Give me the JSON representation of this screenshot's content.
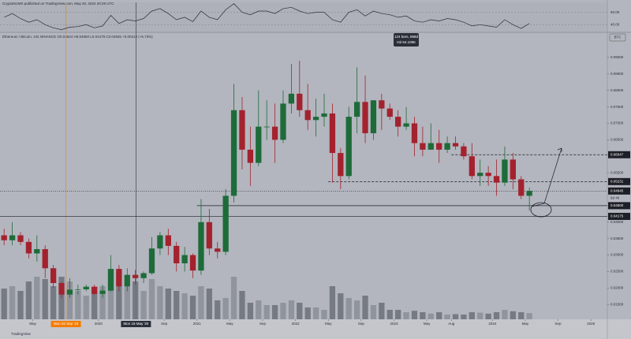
{
  "header": {
    "publisher": "CryptoNicMS published on TradingView.com, May 20, 2024 20:29 UTC",
    "legend": "Ethereum / Bitcoin, 1W, BINANCE  O0.04624 H0.04950 L0.04479 C0.04945 +0.00312 (+6.73%)",
    "measure_bars": "124 bars, 868d",
    "measure_vol": "Vol 64.109K",
    "currency": "BTC",
    "countdown": "6d 4h",
    "logo": "TradingView"
  },
  "chart_data": {
    "type": "candlestick",
    "name": "Ethereum / Bitcoin",
    "up_color": "#1e6b3a",
    "down_color": "#a3222e",
    "x": [
      "2019-01",
      "2019-02",
      "2019-03",
      "2019-04",
      "2019-05",
      "2019-06",
      "2019-07",
      "2019-08",
      "2019-09",
      "2019-10",
      "2019-11",
      "2019-12",
      "2020-01",
      "2020-02",
      "2020-03",
      "2020-04",
      "2020-05",
      "2020-06",
      "2020-07",
      "2020-08",
      "2020-09",
      "2020-10",
      "2020-11",
      "2020-12",
      "2021-01",
      "2021-02",
      "2021-03",
      "2021-04",
      "2021-05",
      "2021-06",
      "2021-07",
      "2021-08",
      "2021-09",
      "2021-10",
      "2021-11",
      "2021-12",
      "2022-01",
      "2022-02",
      "2022-03",
      "2022-04",
      "2022-05",
      "2022-06",
      "2022-07",
      "2022-08",
      "2022-09",
      "2022-10",
      "2022-11",
      "2022-12",
      "2023-01",
      "2023-02",
      "2023-03",
      "2023-04",
      "2023-05",
      "2023-06",
      "2023-07",
      "2023-08",
      "2023-09",
      "2023-10",
      "2023-11",
      "2023-12",
      "2024-01",
      "2024-02",
      "2024-03",
      "2024-04",
      "2024-05"
    ],
    "open": [
      0.036,
      0.0345,
      0.036,
      0.034,
      0.0305,
      0.0318,
      0.026,
      0.0215,
      0.018,
      0.0195,
      0.0196,
      0.0204,
      0.0182,
      0.0192,
      0.0258,
      0.0205,
      0.024,
      0.023,
      0.0245,
      0.032,
      0.036,
      0.0328,
      0.0275,
      0.03,
      0.0253,
      0.04,
      0.032,
      0.031,
      0.048,
      0.074,
      0.062,
      0.058,
      0.069,
      0.069,
      0.065,
      0.076,
      0.079,
      0.074,
      0.071,
      0.072,
      0.073,
      0.061,
      0.054,
      0.072,
      0.0765,
      0.067,
      0.077,
      0.0745,
      0.072,
      0.069,
      0.07,
      0.064,
      0.062,
      0.064,
      0.062,
      0.064,
      0.063,
      0.06,
      0.054,
      0.055,
      0.054,
      0.052,
      0.059,
      0.053,
      0.048
    ],
    "high": [
      0.038,
      0.04,
      0.037,
      0.035,
      0.036,
      0.033,
      0.027,
      0.022,
      0.023,
      0.021,
      0.021,
      0.021,
      0.021,
      0.03,
      0.027,
      0.026,
      0.0255,
      0.025,
      0.0355,
      0.037,
      0.038,
      0.034,
      0.0325,
      0.0305,
      0.047,
      0.044,
      0.034,
      0.05,
      0.082,
      0.078,
      0.069,
      0.08,
      0.077,
      0.076,
      0.08,
      0.088,
      0.089,
      0.082,
      0.0775,
      0.079,
      0.076,
      0.0625,
      0.075,
      0.087,
      0.0845,
      0.077,
      0.079,
      0.076,
      0.074,
      0.075,
      0.072,
      0.069,
      0.07,
      0.068,
      0.066,
      0.066,
      0.064,
      0.064,
      0.059,
      0.057,
      0.059,
      0.063,
      0.061,
      0.054,
      0.0505
    ],
    "low": [
      0.033,
      0.033,
      0.033,
      0.029,
      0.028,
      0.023,
      0.02,
      0.017,
      0.017,
      0.018,
      0.019,
      0.018,
      0.017,
      0.019,
      0.019,
      0.019,
      0.021,
      0.0215,
      0.024,
      0.03,
      0.03,
      0.025,
      0.025,
      0.023,
      0.024,
      0.03,
      0.029,
      0.03,
      0.046,
      0.056,
      0.051,
      0.057,
      0.065,
      0.058,
      0.064,
      0.073,
      0.072,
      0.068,
      0.066,
      0.069,
      0.052,
      0.05,
      0.053,
      0.067,
      0.064,
      0.065,
      0.068,
      0.071,
      0.066,
      0.068,
      0.06,
      0.06,
      0.062,
      0.058,
      0.061,
      0.062,
      0.059,
      0.053,
      0.051,
      0.051,
      0.048,
      0.051,
      0.05,
      0.047,
      0.0435
    ],
    "close": [
      0.0345,
      0.036,
      0.034,
      0.0305,
      0.0318,
      0.026,
      0.0215,
      0.018,
      0.0195,
      0.0196,
      0.0204,
      0.0182,
      0.0192,
      0.0258,
      0.0205,
      0.024,
      0.023,
      0.0245,
      0.032,
      0.036,
      0.0328,
      0.0275,
      0.03,
      0.0253,
      0.04,
      0.032,
      0.031,
      0.048,
      0.074,
      0.062,
      0.058,
      0.069,
      0.069,
      0.065,
      0.076,
      0.079,
      0.074,
      0.071,
      0.072,
      0.073,
      0.061,
      0.054,
      0.072,
      0.0765,
      0.067,
      0.077,
      0.0745,
      0.072,
      0.069,
      0.07,
      0.064,
      0.062,
      0.064,
      0.062,
      0.064,
      0.063,
      0.06,
      0.054,
      0.055,
      0.054,
      0.052,
      0.059,
      0.053,
      0.048,
      0.0495
    ],
    "volume": [
      650,
      700,
      600,
      800,
      900,
      850,
      700,
      900,
      800,
      600,
      500,
      550,
      700,
      900,
      1000,
      700,
      800,
      600,
      850,
      700,
      650,
      600,
      550,
      500,
      700,
      650,
      400,
      450,
      900,
      600,
      350,
      400,
      300,
      300,
      350,
      400,
      350,
      250,
      250,
      200,
      700,
      550,
      450,
      400,
      500,
      300,
      350,
      200,
      200,
      150,
      180,
      150,
      120,
      150,
      100,
      110,
      100,
      150,
      140,
      120,
      150,
      200,
      170,
      150,
      130
    ],
    "rsi": [
      52,
      58,
      50,
      44,
      48,
      40,
      35,
      32,
      36,
      37,
      40,
      35,
      38,
      55,
      42,
      48,
      46,
      50,
      62,
      66,
      58,
      48,
      52,
      45,
      62,
      52,
      48,
      64,
      74,
      60,
      56,
      62,
      62,
      58,
      66,
      68,
      62,
      58,
      60,
      60,
      48,
      44,
      60,
      64,
      54,
      62,
      58,
      56,
      52,
      54,
      46,
      44,
      48,
      46,
      50,
      48,
      44,
      38,
      40,
      38,
      36,
      48,
      40,
      34,
      42
    ],
    "rsi_ylim": [
      29,
      76
    ],
    "rsi_yticks": [
      {
        "value": 60,
        "label": "60.00"
      },
      {
        "value": 40,
        "label": "40.00"
      }
    ],
    "rsi_color": "#2a2e39",
    "xlim": [
      "2019-01-01",
      "2025-03-01"
    ],
    "xticks": [
      {
        "value": "2019-05",
        "label": "May"
      },
      {
        "value": "2019-09-02",
        "label": "Mon 02 Sep '19",
        "highlight": "#f57c00"
      },
      {
        "value": "2020-01",
        "label": "2020"
      },
      {
        "value": "2020-05-18",
        "label": "Mon 18 May '20",
        "highlight": "#2a2e39"
      },
      {
        "value": "2020-09",
        "label": "Sep"
      },
      {
        "value": "2021-01",
        "label": "2021"
      },
      {
        "value": "2021-05",
        "label": "May"
      },
      {
        "value": "2021-09",
        "label": "Sep"
      },
      {
        "value": "2022-01",
        "label": "2022"
      },
      {
        "value": "2022-05",
        "label": "May"
      },
      {
        "value": "2022-09",
        "label": "Sep"
      },
      {
        "value": "2023-01",
        "label": "2023"
      },
      {
        "value": "2023-05",
        "label": "May"
      },
      {
        "value": "2023-08",
        "label": "Aug"
      },
      {
        "value": "2024-01",
        "label": "2024"
      },
      {
        "value": "2024-05",
        "label": "May"
      },
      {
        "value": "2024-09",
        "label": "Sep"
      },
      {
        "value": "2025-01",
        "label": "2025"
      }
    ],
    "ylim": [
      0.0105,
      0.0974
    ],
    "yticks": [
      {
        "value": 0.09,
        "label": "0.09000"
      },
      {
        "value": 0.085,
        "label": "0.08500"
      },
      {
        "value": 0.08,
        "label": "0.08000"
      },
      {
        "value": 0.075,
        "label": "0.07500"
      },
      {
        "value": 0.07,
        "label": "0.07000"
      },
      {
        "value": 0.065,
        "label": "0.06500"
      },
      {
        "value": 0.055,
        "label": "0.05500"
      },
      {
        "value": 0.04,
        "label": "0.04000"
      },
      {
        "value": 0.035,
        "label": "0.03500"
      },
      {
        "value": 0.03,
        "label": "0.03000"
      },
      {
        "value": 0.025,
        "label": "0.02500"
      },
      {
        "value": 0.02,
        "label": "0.02000"
      },
      {
        "value": 0.015,
        "label": "0.01500"
      }
    ],
    "levels": [
      {
        "value": 0.06047,
        "label": "0.06047",
        "style": "dashed",
        "from": "2023-08"
      },
      {
        "value": 0.05231,
        "label": "0.05231",
        "style": "dashed",
        "from": "2022-05"
      },
      {
        "value": 0.04945,
        "label": "0.04945",
        "style": "dotted",
        "from": "2019-01"
      },
      {
        "value": 0.045,
        "label": "0.04500",
        "style": "solid",
        "from": "2021-01"
      },
      {
        "value": 0.04175,
        "label": "0.04175",
        "style": "solid",
        "from": "2019-01"
      }
    ],
    "grid": false
  }
}
